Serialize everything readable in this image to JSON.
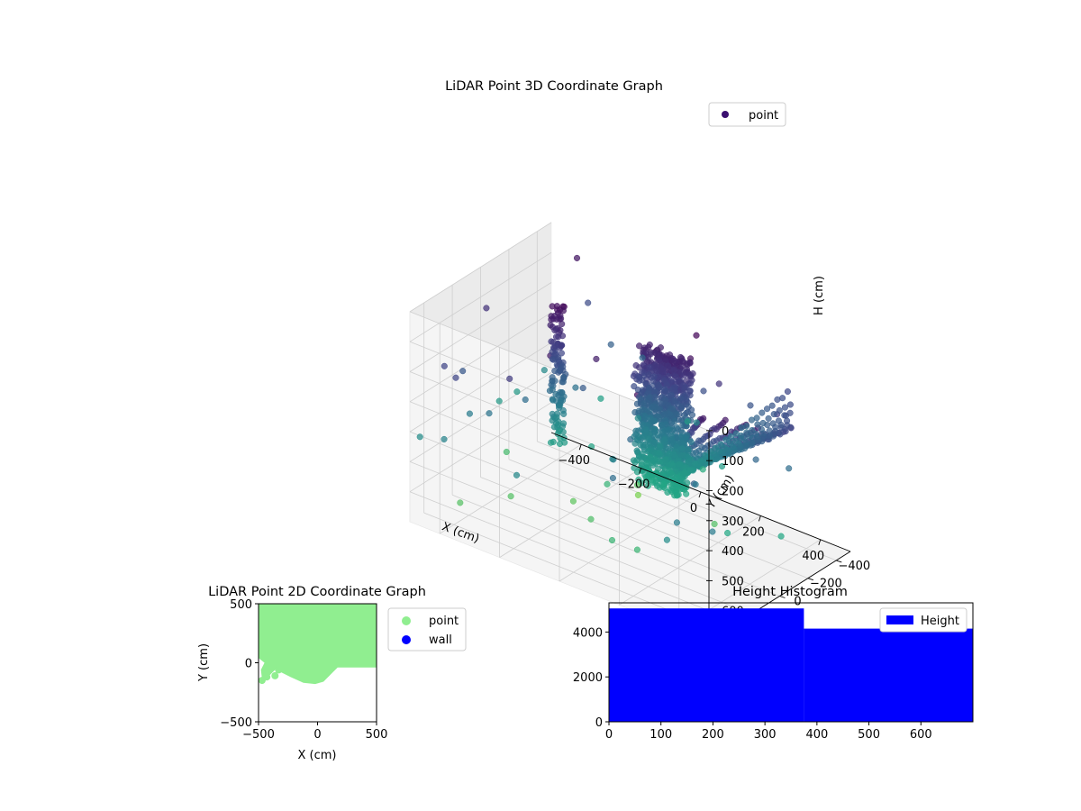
{
  "chart_data": [
    {
      "type": "scatter",
      "projection": "3d",
      "title": "LiDAR Point 3D Coordinate Graph",
      "xlabel": "X (cm)",
      "ylabel": "Y (cm)",
      "zlabel": "H (cm)",
      "xlim": [
        -500,
        500
      ],
      "ylim": [
        -500,
        500
      ],
      "zlim": [
        0,
        700
      ],
      "z_inverted": true,
      "x_ticks": [
        -400,
        -200,
        0,
        200,
        400
      ],
      "y_ticks": [
        -400,
        -200,
        0
      ],
      "z_ticks": [
        0,
        100,
        200,
        300,
        400,
        500,
        600
      ],
      "grid": true,
      "legend": {
        "position": "top-right",
        "entries": [
          "point"
        ]
      },
      "colormap": "viridis",
      "series": [
        {
          "name": "point",
          "color": "#3b0f70",
          "description": "dense wall of points rising near X 0 to 150, Y -100 to 0, H 100 to 500; radial scan lines fanning out to positive X"
        }
      ]
    },
    {
      "type": "scatter",
      "title": "LiDAR Point 2D Coordinate Graph",
      "xlabel": "X (cm)",
      "ylabel": "Y (cm)",
      "xlim": [
        -500,
        500
      ],
      "ylim": [
        -500,
        500
      ],
      "x_ticks": [
        -500,
        0,
        500
      ],
      "y_ticks": [
        -500,
        0,
        500
      ],
      "legend": {
        "position": "outside-right",
        "entries": [
          "point",
          "wall"
        ]
      },
      "series": [
        {
          "name": "point",
          "color": "#90ee90",
          "outline": [
            [
              -500,
              500
            ],
            [
              500,
              500
            ],
            [
              500,
              -40
            ],
            [
              170,
              -40
            ],
            [
              130,
              -80
            ],
            [
              50,
              -160
            ],
            [
              -20,
              -180
            ],
            [
              -120,
              -170
            ],
            [
              -230,
              -120
            ],
            [
              -310,
              -80
            ],
            [
              -360,
              -60
            ],
            [
              -400,
              -100
            ],
            [
              -430,
              -130
            ],
            [
              -470,
              -140
            ],
            [
              -480,
              -60
            ],
            [
              -450,
              0
            ],
            [
              -500,
              40
            ]
          ]
        },
        {
          "name": "wall",
          "color": "#0000ff",
          "points": []
        }
      ]
    },
    {
      "type": "histogram",
      "title": "Height Histogram",
      "xlabel": "",
      "ylabel": "",
      "xlim": [
        0,
        700
      ],
      "ylim": [
        0,
        5300
      ],
      "x_ticks": [
        0,
        100,
        200,
        300,
        400,
        500,
        600
      ],
      "y_ticks": [
        0,
        2000,
        4000
      ],
      "legend": {
        "position": "top-right",
        "entries": [
          "Height"
        ]
      },
      "series": [
        {
          "name": "Height",
          "color": "#0000ff",
          "bins": [
            {
              "x0": 0,
              "x1": 375,
              "value": 5050
            },
            {
              "x0": 375,
              "x1": 700,
              "value": 4150
            }
          ]
        }
      ]
    }
  ]
}
